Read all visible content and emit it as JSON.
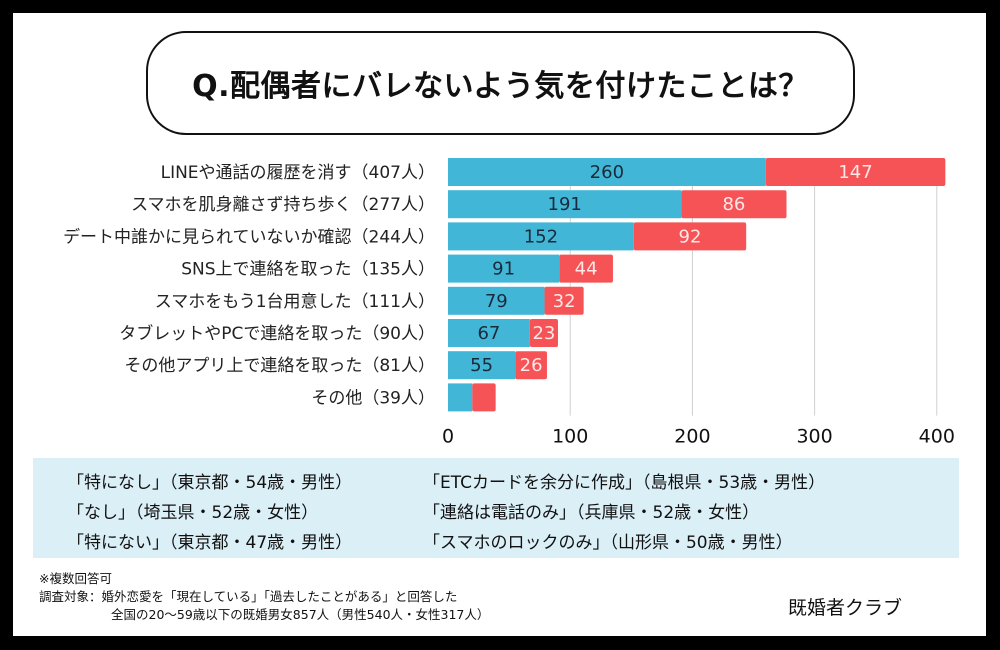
{
  "title": "Q.配偶者にバレないよう気を付けたことは？",
  "chart_data": {
    "type": "bar",
    "orientation": "horizontal",
    "stacked": true,
    "title": "Q.配偶者にバレないよう気を付けたことは？",
    "categories": [
      "LINEや通話の履歴を消す（407人）",
      "スマホを肌身離さず持ち歩く（277人）",
      "デート中誰かに見られていないか確認（244人）",
      "SNS上で連絡を取った（135人）",
      "スマホをもう1台用意した（111人）",
      "タブレットやPCで連絡を取った（90人）",
      "その他アプリ上で連絡を取った（81人）",
      "その他（39人）"
    ],
    "totals": [
      407,
      277,
      244,
      135,
      111,
      90,
      81,
      39
    ],
    "series": [
      {
        "name": "series-blue",
        "color": "#41b6d6",
        "label_color": "#1a2a3a",
        "values": [
          260,
          191,
          152,
          91,
          79,
          67,
          55,
          null
        ]
      },
      {
        "name": "series-red",
        "color": "#f55356",
        "label_color": "#ffe8e8",
        "values": [
          147,
          86,
          92,
          44,
          32,
          23,
          26,
          null
        ]
      }
    ],
    "unlabeled_split_estimate": {
      "index": 7,
      "blue_fraction": 0.51
    },
    "xlim": [
      0,
      400
    ],
    "xticks": [
      0,
      100,
      200,
      300,
      400
    ],
    "grid": true,
    "xlabel": "",
    "ylabel": "",
    "legend": "none"
  },
  "quotes": [
    "「特になし」（東京都・54歳・男性）",
    "「なし」（埼玉県・52歳・女性）",
    "「特にない」（東京都・47歳・男性）",
    "「ETCカードを余分に作成」（島根県・53歳・男性）",
    "「連絡は電話のみ」（兵庫県・52歳・女性）",
    "「スマホのロックのみ」（山形県・50歳・男性）"
  ],
  "notes": {
    "multiple": "※複数回答可",
    "target_line1": "調査対象：婚外恋愛を「現在している」「過去したことがある」と回答した",
    "target_line2": "全国の20〜59歳以下の既婚男女857人（男性540人・女性317人）"
  },
  "brand": "既婚者クラブ",
  "colors": {
    "blue": "#41b6d6",
    "red": "#f55356",
    "quote_bg": "#dbeff7"
  }
}
